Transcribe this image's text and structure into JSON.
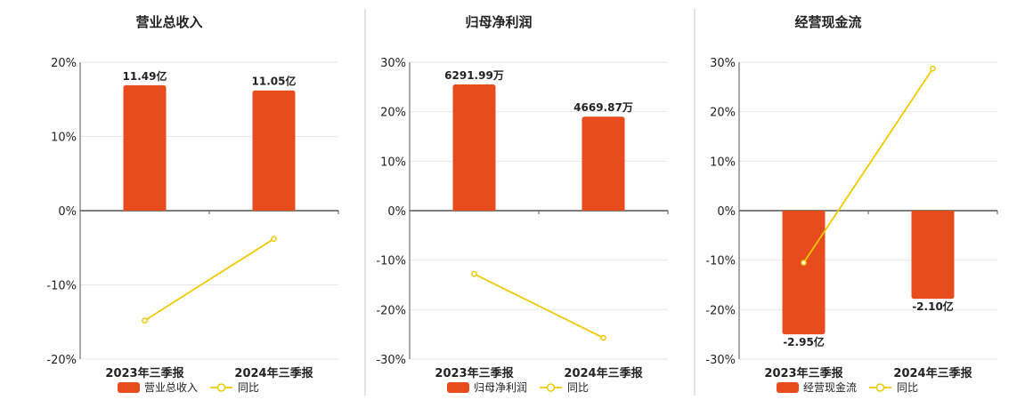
{
  "chart_data": [
    {
      "type": "bar",
      "title": "营业总收入",
      "categories": [
        "2023年三季报",
        "2024年三季报"
      ],
      "series": [
        {
          "name": "营业总收入",
          "type": "bar",
          "values": [
            16.9,
            16.2
          ],
          "labels": [
            "11.49亿",
            "11.05亿"
          ]
        },
        {
          "name": "同比",
          "type": "line",
          "values": [
            -14.8,
            -3.8
          ]
        }
      ],
      "yticks": [
        "20%",
        "10%",
        "0%",
        "-10%",
        "-20%"
      ],
      "ylim": [
        -20,
        20
      ],
      "colors": {
        "bar": "#e84c1c",
        "line": "#f0c900"
      },
      "legend": "bottom-center",
      "grid": true
    },
    {
      "type": "bar",
      "title": "归母净利润",
      "categories": [
        "2023年三季报",
        "2024年三季报"
      ],
      "series": [
        {
          "name": "归母净利润",
          "type": "bar",
          "values": [
            25.5,
            19.0
          ],
          "labels": [
            "6291.99万",
            "4669.87万"
          ]
        },
        {
          "name": "同比",
          "type": "line",
          "values": [
            -12.8,
            -25.7
          ]
        }
      ],
      "yticks": [
        "30%",
        "20%",
        "10%",
        "0%",
        "-10%",
        "-20%",
        "-30%"
      ],
      "ylim": [
        -30,
        30
      ],
      "colors": {
        "bar": "#e84c1c",
        "line": "#f0c900"
      },
      "legend": "bottom-center",
      "grid": true
    },
    {
      "type": "bar",
      "title": "经营现金流",
      "categories": [
        "2023年三季报",
        "2024年三季报"
      ],
      "series": [
        {
          "name": "经营现金流",
          "type": "bar",
          "values": [
            -25.0,
            -17.8
          ],
          "labels": [
            "-2.95亿",
            "-2.10亿"
          ]
        },
        {
          "name": "同比",
          "type": "line",
          "values": [
            -10.5,
            28.7
          ]
        }
      ],
      "yticks": [
        "30%",
        "20%",
        "10%",
        "0%",
        "-10%",
        "-20%",
        "-30%"
      ],
      "ylim": [
        -30,
        30
      ],
      "colors": {
        "bar": "#e84c1c",
        "line": "#f0c900"
      },
      "legend": "bottom-center",
      "grid": true
    }
  ]
}
